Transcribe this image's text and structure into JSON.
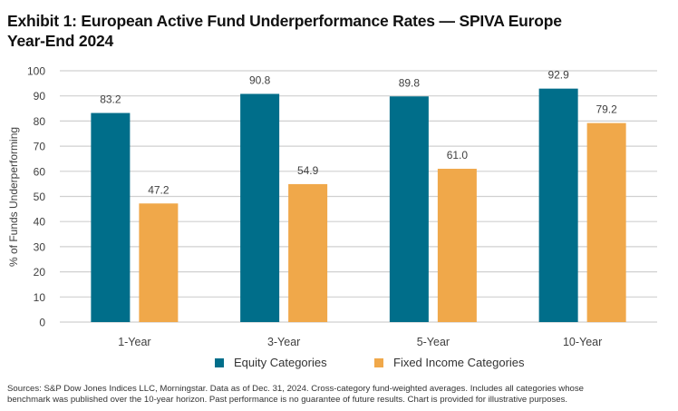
{
  "title": {
    "line1": "Exhibit 1: European Active Fund Underperformance Rates — SPIVA Europe",
    "line2": "Year-End 2024"
  },
  "footnote": {
    "line1": "Sources: S&P Dow Jones Indices LLC, Morningstar. Data as of Dec. 31, 2024. Cross-category fund-weighted averages. Includes all categories whose",
    "line2": "benchmark was published over the 10-year horizon. Past performance is no guarantee of future results. Chart is provided for illustrative purposes."
  },
  "colors": {
    "equity": "#006e8a",
    "fixed_income": "#f0a84a",
    "grid": "#d0d0d0",
    "axis_text": "#404040"
  },
  "chart_data": {
    "type": "bar",
    "title": "Exhibit 1: European Active Fund Underperformance Rates — SPIVA Europe Year-End 2024",
    "xlabel": "",
    "ylabel": "% of Funds Underperforming",
    "ylim": [
      0,
      100
    ],
    "yticks": [
      0,
      10,
      20,
      30,
      40,
      50,
      60,
      70,
      80,
      90,
      100
    ],
    "grid": true,
    "legend_position": "bottom",
    "categories": [
      "1-Year",
      "3-Year",
      "5-Year",
      "10-Year"
    ],
    "series": [
      {
        "name": "Equity Categories",
        "color": "#006e8a",
        "values": [
          83.2,
          90.8,
          89.8,
          92.9
        ],
        "labels": [
          "83.2",
          "90.8",
          "89.8",
          "92.9"
        ]
      },
      {
        "name": "Fixed Income Categories",
        "color": "#f0a84a",
        "values": [
          47.2,
          54.9,
          61.0,
          79.2
        ],
        "labels": [
          "47.2",
          "54.9",
          "61.0",
          "79.2"
        ]
      }
    ]
  }
}
